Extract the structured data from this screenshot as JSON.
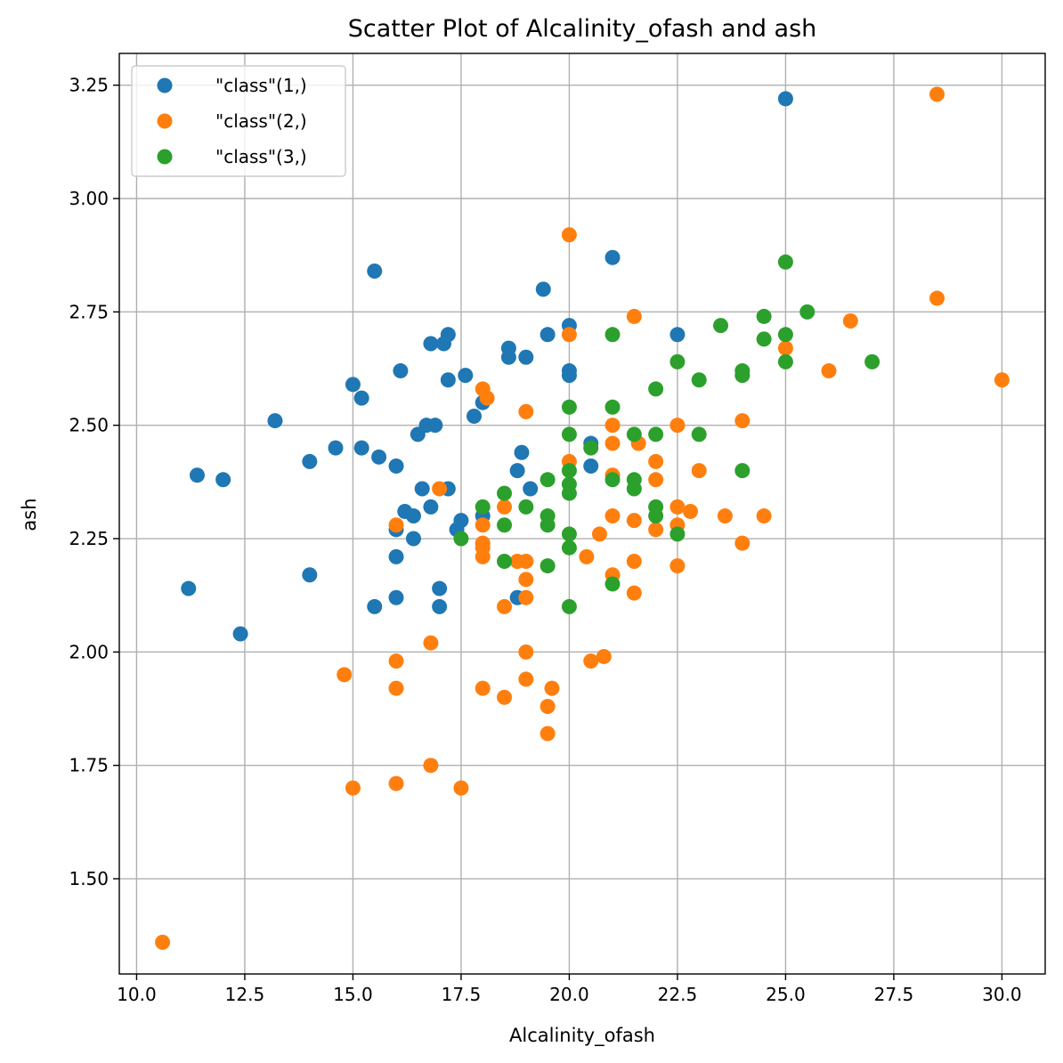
{
  "chart_data": {
    "type": "scatter",
    "title": "Scatter Plot of Alcalinity_ofash and ash",
    "xlabel": "Alcalinity_ofash",
    "ylabel": "ash",
    "xlim": [
      9.6,
      31.0
    ],
    "ylim": [
      1.29,
      3.32
    ],
    "xticks": [
      10.0,
      12.5,
      15.0,
      17.5,
      20.0,
      22.5,
      25.0,
      27.5,
      30.0
    ],
    "xtick_labels": [
      "10.0",
      "12.5",
      "15.0",
      "17.5",
      "20.0",
      "22.5",
      "25.0",
      "27.5",
      "30.0"
    ],
    "yticks": [
      1.5,
      1.75,
      2.0,
      2.25,
      2.5,
      2.75,
      3.0,
      3.25
    ],
    "ytick_labels": [
      "1.50",
      "1.75",
      "2.00",
      "2.25",
      "2.50",
      "2.75",
      "3.00",
      "3.25"
    ],
    "grid": true,
    "legend_position": "top-left",
    "series": [
      {
        "name": "\"class\"(1,)",
        "color": "#1f77b4",
        "points": [
          [
            25.0,
            3.22
          ],
          [
            21.0,
            2.87
          ],
          [
            15.5,
            2.84
          ],
          [
            19.4,
            2.8
          ],
          [
            20.0,
            2.72
          ],
          [
            19.5,
            2.7
          ],
          [
            17.2,
            2.7
          ],
          [
            22.5,
            2.7
          ],
          [
            16.8,
            2.68
          ],
          [
            17.1,
            2.68
          ],
          [
            18.6,
            2.67
          ],
          [
            18.6,
            2.65
          ],
          [
            19.0,
            2.65
          ],
          [
            16.1,
            2.62
          ],
          [
            20.0,
            2.62
          ],
          [
            20.0,
            2.61
          ],
          [
            17.6,
            2.61
          ],
          [
            17.2,
            2.6
          ],
          [
            15.0,
            2.59
          ],
          [
            15.2,
            2.56
          ],
          [
            18.0,
            2.55
          ],
          [
            17.8,
            2.52
          ],
          [
            13.2,
            2.51
          ],
          [
            16.7,
            2.5
          ],
          [
            16.9,
            2.5
          ],
          [
            16.5,
            2.48
          ],
          [
            14.6,
            2.45
          ],
          [
            15.2,
            2.45
          ],
          [
            20.5,
            2.46
          ],
          [
            18.9,
            2.44
          ],
          [
            15.6,
            2.43
          ],
          [
            14.0,
            2.42
          ],
          [
            16.0,
            2.41
          ],
          [
            20.5,
            2.41
          ],
          [
            18.8,
            2.4
          ],
          [
            11.4,
            2.39
          ],
          [
            12.0,
            2.38
          ],
          [
            16.6,
            2.36
          ],
          [
            17.2,
            2.36
          ],
          [
            19.1,
            2.36
          ],
          [
            16.2,
            2.31
          ],
          [
            16.4,
            2.3
          ],
          [
            18.0,
            2.3
          ],
          [
            17.5,
            2.29
          ],
          [
            16.0,
            2.27
          ],
          [
            17.4,
            2.27
          ],
          [
            16.4,
            2.25
          ],
          [
            16.0,
            2.21
          ],
          [
            14.0,
            2.17
          ],
          [
            11.2,
            2.14
          ],
          [
            17.0,
            2.14
          ],
          [
            16.0,
            2.12
          ],
          [
            18.8,
            2.12
          ],
          [
            15.5,
            2.1
          ],
          [
            17.0,
            2.1
          ],
          [
            12.4,
            2.04
          ],
          [
            16.8,
            2.32
          ]
        ]
      },
      {
        "name": "\"class\"(2,)",
        "color": "#ff7f0e",
        "points": [
          [
            28.5,
            3.23
          ],
          [
            20.0,
            2.92
          ],
          [
            28.5,
            2.78
          ],
          [
            21.5,
            2.74
          ],
          [
            26.5,
            2.73
          ],
          [
            20.0,
            2.7
          ],
          [
            25.0,
            2.67
          ],
          [
            26.0,
            2.62
          ],
          [
            30.0,
            2.6
          ],
          [
            18.0,
            2.58
          ],
          [
            18.1,
            2.56
          ],
          [
            19.0,
            2.53
          ],
          [
            24.0,
            2.51
          ],
          [
            21.0,
            2.5
          ],
          [
            22.5,
            2.5
          ],
          [
            21.0,
            2.46
          ],
          [
            21.6,
            2.46
          ],
          [
            20.0,
            2.42
          ],
          [
            22.0,
            2.42
          ],
          [
            23.0,
            2.4
          ],
          [
            21.0,
            2.39
          ],
          [
            22.0,
            2.38
          ],
          [
            17.0,
            2.36
          ],
          [
            18.5,
            2.32
          ],
          [
            22.5,
            2.32
          ],
          [
            22.8,
            2.31
          ],
          [
            21.0,
            2.3
          ],
          [
            23.6,
            2.3
          ],
          [
            24.5,
            2.3
          ],
          [
            21.5,
            2.29
          ],
          [
            16.0,
            2.28
          ],
          [
            18.0,
            2.28
          ],
          [
            22.0,
            2.27
          ],
          [
            22.5,
            2.28
          ],
          [
            20.7,
            2.26
          ],
          [
            24.0,
            2.24
          ],
          [
            18.0,
            2.24
          ],
          [
            18.0,
            2.23
          ],
          [
            18.0,
            2.21
          ],
          [
            20.4,
            2.21
          ],
          [
            18.8,
            2.2
          ],
          [
            19.0,
            2.2
          ],
          [
            21.5,
            2.2
          ],
          [
            22.5,
            2.19
          ],
          [
            21.0,
            2.17
          ],
          [
            19.0,
            2.16
          ],
          [
            21.5,
            2.13
          ],
          [
            19.0,
            2.12
          ],
          [
            18.5,
            2.1
          ],
          [
            16.8,
            2.02
          ],
          [
            19.0,
            2.0
          ],
          [
            20.8,
            1.99
          ],
          [
            20.5,
            1.98
          ],
          [
            16.0,
            1.98
          ],
          [
            14.8,
            1.95
          ],
          [
            19.0,
            1.94
          ],
          [
            16.0,
            1.92
          ],
          [
            18.0,
            1.92
          ],
          [
            19.6,
            1.92
          ],
          [
            18.5,
            1.9
          ],
          [
            19.5,
            1.88
          ],
          [
            19.5,
            1.82
          ],
          [
            16.8,
            1.75
          ],
          [
            16.0,
            1.71
          ],
          [
            15.0,
            1.7
          ],
          [
            17.5,
            1.7
          ],
          [
            10.6,
            1.36
          ]
        ]
      },
      {
        "name": "\"class\"(3,)",
        "color": "#2ca02c",
        "points": [
          [
            25.0,
            2.86
          ],
          [
            25.5,
            2.75
          ],
          [
            24.5,
            2.74
          ],
          [
            23.5,
            2.72
          ],
          [
            21.0,
            2.7
          ],
          [
            25.0,
            2.7
          ],
          [
            24.5,
            2.69
          ],
          [
            27.0,
            2.64
          ],
          [
            25.0,
            2.64
          ],
          [
            22.5,
            2.64
          ],
          [
            24.0,
            2.62
          ],
          [
            24.0,
            2.61
          ],
          [
            23.0,
            2.6
          ],
          [
            22.0,
            2.58
          ],
          [
            20.0,
            2.54
          ],
          [
            21.0,
            2.54
          ],
          [
            20.0,
            2.48
          ],
          [
            21.5,
            2.48
          ],
          [
            22.0,
            2.48
          ],
          [
            23.0,
            2.48
          ],
          [
            20.5,
            2.45
          ],
          [
            20.0,
            2.4
          ],
          [
            24.0,
            2.4
          ],
          [
            21.0,
            2.38
          ],
          [
            19.5,
            2.38
          ],
          [
            21.5,
            2.38
          ],
          [
            20.0,
            2.37
          ],
          [
            21.5,
            2.36
          ],
          [
            18.5,
            2.35
          ],
          [
            20.0,
            2.35
          ],
          [
            18.0,
            2.32
          ],
          [
            19.0,
            2.32
          ],
          [
            22.0,
            2.32
          ],
          [
            19.5,
            2.3
          ],
          [
            22.0,
            2.3
          ],
          [
            18.5,
            2.28
          ],
          [
            19.5,
            2.28
          ],
          [
            20.0,
            2.26
          ],
          [
            22.5,
            2.26
          ],
          [
            17.5,
            2.25
          ],
          [
            20.0,
            2.23
          ],
          [
            18.5,
            2.2
          ],
          [
            19.5,
            2.19
          ],
          [
            21.0,
            2.15
          ],
          [
            20.0,
            2.1
          ]
        ]
      }
    ]
  }
}
